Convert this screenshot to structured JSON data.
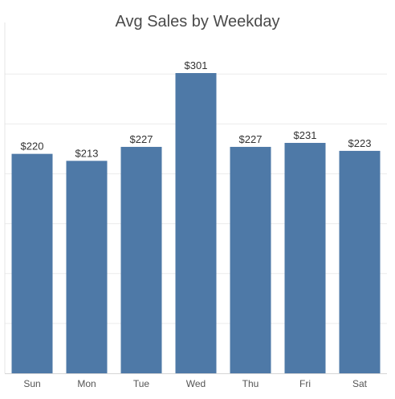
{
  "chart_data": {
    "type": "bar",
    "title": "Avg Sales by Weekday",
    "xlabel": "",
    "ylabel": "",
    "categories": [
      "Sun",
      "Mon",
      "Tue",
      "Wed",
      "Thu",
      "Fri",
      "Sat"
    ],
    "values": [
      220,
      213,
      227,
      301,
      227,
      231,
      223
    ],
    "value_labels": [
      "$220",
      "$213",
      "$227",
      "$301",
      "$227",
      "$231",
      "$223"
    ],
    "ylim": [
      0,
      300
    ],
    "grid": true,
    "legend": "none",
    "colors": {
      "bar": "#4e79a7",
      "grid": "#ececec",
      "text": "#333333",
      "tick": "#555555"
    }
  }
}
